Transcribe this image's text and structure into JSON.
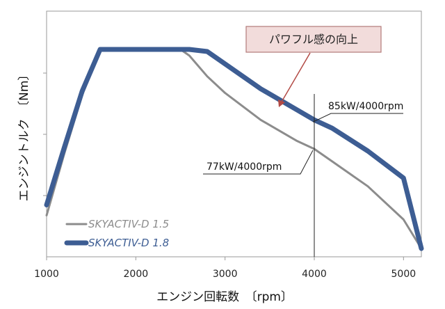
{
  "chart_data": {
    "type": "line",
    "xlabel": "エンジン回転数　〔rpm〕",
    "ylabel": "エンジントルク　〔Nm〕",
    "xlim": [
      1000,
      5200
    ],
    "xticks": [
      "1000",
      "2000",
      "3000",
      "4000",
      "5000"
    ],
    "y_tick_labels_shown": false,
    "grid": false,
    "legend_position": "bottom-left",
    "series": [
      {
        "name": "SKYACTIV-D 1.5",
        "color": "#8c8c8c",
        "x": [
          1000,
          1200,
          1400,
          1600,
          2000,
          2500,
          2600,
          2800,
          3000,
          3400,
          3800,
          4000,
          4200,
          4600,
          5000,
          5200
        ],
        "y": [
          0.2,
          0.5,
          0.78,
          1.0,
          1.0,
          1.0,
          0.97,
          0.87,
          0.79,
          0.66,
          0.56,
          0.52,
          0.46,
          0.34,
          0.18,
          0.04
        ]
      },
      {
        "name": "SKYACTIV-D 1.8",
        "color": "#3d5d93",
        "x": [
          1000,
          1200,
          1400,
          1600,
          2000,
          2500,
          2600,
          2800,
          3000,
          3400,
          3800,
          4000,
          4200,
          4600,
          5000,
          5200
        ],
        "y": [
          0.25,
          0.53,
          0.8,
          1.0,
          1.0,
          1.0,
          1.0,
          0.99,
          0.93,
          0.81,
          0.71,
          0.66,
          0.62,
          0.51,
          0.38,
          0.04
        ]
      }
    ],
    "annotations": [
      {
        "text": "85kW/4000rpm",
        "x": 4000,
        "series": "SKYACTIV-D 1.8"
      },
      {
        "text": "77kW/4000rpm",
        "x": 4000,
        "series": "SKYACTIV-D 1.5"
      },
      {
        "text": "パワフル感の向上"
      }
    ],
    "vline_x": 4000
  }
}
